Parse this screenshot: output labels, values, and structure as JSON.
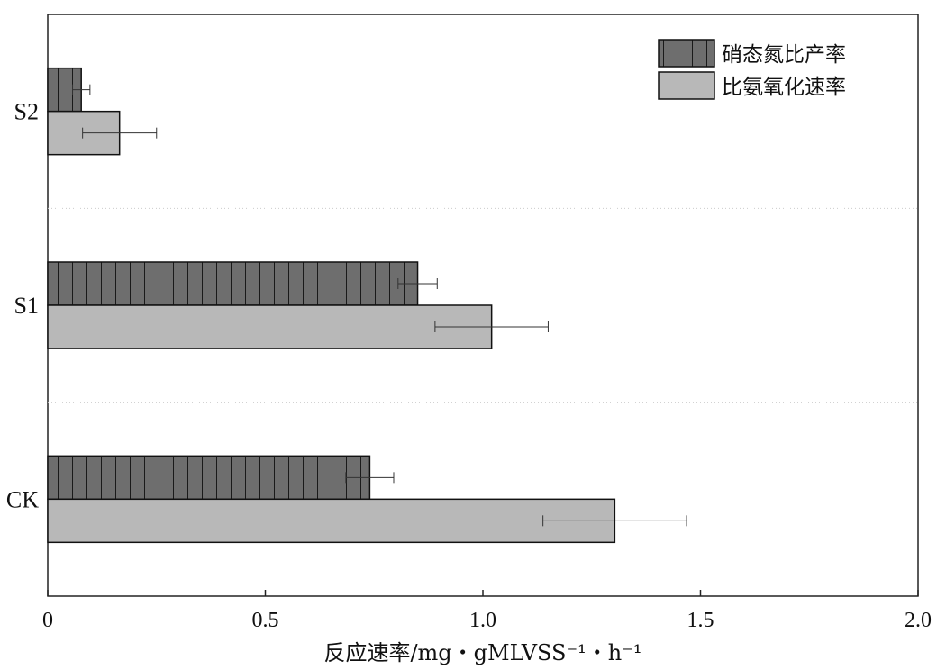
{
  "chart_data": {
    "type": "bar",
    "orientation": "horizontal",
    "categories": [
      "S2",
      "S1",
      "CK"
    ],
    "series": [
      {
        "name": "硝态氮比产率",
        "values": [
          0.077,
          0.85,
          0.74
        ],
        "errors": [
          0.02,
          0.045,
          0.055
        ],
        "color": "#6e6e6e",
        "pattern": "vertical-hatch"
      },
      {
        "name": "比氨氧化速率",
        "values": [
          0.165,
          1.02,
          1.303
        ],
        "errors": [
          0.085,
          0.13,
          0.165
        ],
        "color": "#b8b8b8",
        "pattern": "solid"
      }
    ],
    "xlim": [
      0,
      2.0
    ],
    "xticks": [
      "0",
      "0.5",
      "1.0",
      "1.5",
      "2.0"
    ],
    "xlabel": "反应速率/mg・gMLVSS⁻¹・h⁻¹",
    "ylabel": "",
    "title": "",
    "grid": "dotted horizontal separators between categories",
    "legend_position": "top-right"
  }
}
